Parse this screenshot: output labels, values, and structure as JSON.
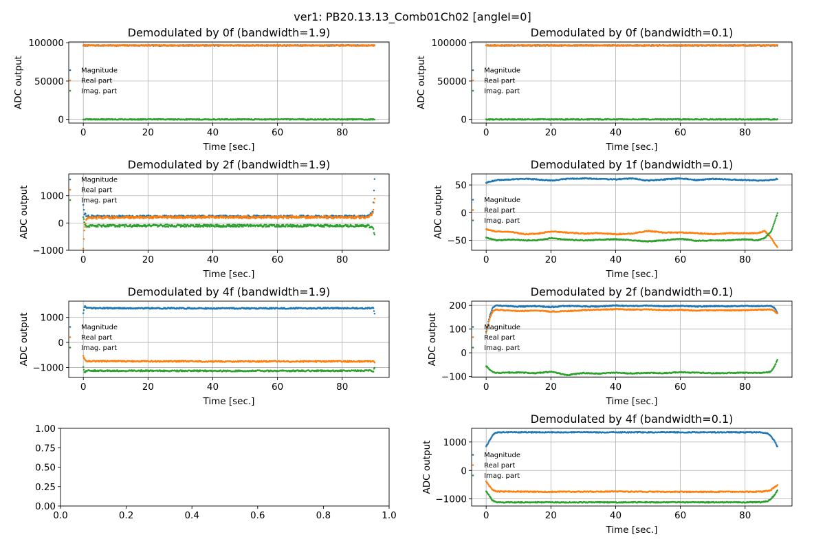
{
  "figure": {
    "suptitle": "ver1: PB20.13.13_Comb01Ch02 [angleI=0]"
  },
  "colors": {
    "magnitude": "#1f77b4",
    "real": "#ff7f0e",
    "imag": "#2ca02c",
    "grid": "#b0b0b0"
  },
  "chart_data": [
    {
      "id": "p1",
      "type": "scatter",
      "title": "Demodulated by 0f (bandwidth=1.9)",
      "xlabel": "Time [sec.]",
      "ylabel": "ADC output",
      "xlim": [
        -4.5,
        94.5
      ],
      "ylim": [
        -4800,
        101000
      ],
      "xticks": [
        0,
        20,
        40,
        60,
        80
      ],
      "xtick_labels": [
        "0",
        "20",
        "40",
        "60",
        "80"
      ],
      "yticks": [
        0,
        50000,
        100000
      ],
      "ytick_labels": [
        "0",
        "50000",
        "100000"
      ],
      "grid": true,
      "legend_loc": "center-left",
      "legend": [
        "Magnitude",
        "Real part",
        "Imag. part"
      ],
      "series": [
        {
          "name": "Magnitude",
          "color": "#1f77b4",
          "x": [
            0,
            45,
            90
          ],
          "y": [
            96500,
            96500,
            96500
          ]
        },
        {
          "name": "Real part",
          "color": "#ff7f0e",
          "x": [
            0,
            45,
            90
          ],
          "y": [
            96500,
            96500,
            96500
          ]
        },
        {
          "name": "Imag. part",
          "color": "#2ca02c",
          "x": [
            0,
            45,
            90
          ],
          "y": [
            0,
            0,
            0
          ]
        }
      ]
    },
    {
      "id": "p2",
      "type": "scatter",
      "title": "Demodulated by 0f (bandwidth=0.1)",
      "xlabel": "Time [sec.]",
      "ylabel": "ADC output",
      "xlim": [
        -4.5,
        94.5
      ],
      "ylim": [
        -4800,
        101000
      ],
      "xticks": [
        0,
        20,
        40,
        60,
        80
      ],
      "xtick_labels": [
        "0",
        "20",
        "40",
        "60",
        "80"
      ],
      "yticks": [
        0,
        50000,
        100000
      ],
      "ytick_labels": [
        "0",
        "50000",
        "100000"
      ],
      "grid": true,
      "legend_loc": "center-left",
      "legend": [
        "Magnitude",
        "Real part",
        "Imag. part"
      ],
      "series": [
        {
          "name": "Magnitude",
          "color": "#1f77b4",
          "x": [
            0,
            45,
            90
          ],
          "y": [
            96500,
            96500,
            96500
          ]
        },
        {
          "name": "Real part",
          "color": "#ff7f0e",
          "x": [
            0,
            45,
            90
          ],
          "y": [
            96500,
            96500,
            96500
          ]
        },
        {
          "name": "Imag. part",
          "color": "#2ca02c",
          "x": [
            0,
            45,
            90
          ],
          "y": [
            0,
            0,
            0
          ]
        }
      ]
    },
    {
      "id": "p3",
      "type": "scatter",
      "title": "Demodulated by 2f (bandwidth=1.9)",
      "xlabel": "Time [sec.]",
      "ylabel": "ADC output",
      "xlim": [
        -4.5,
        94.5
      ],
      "ylim": [
        -1000,
        1800
      ],
      "xticks": [
        0,
        20,
        40,
        60,
        80
      ],
      "xtick_labels": [
        "0",
        "20",
        "40",
        "60",
        "80"
      ],
      "yticks": [
        -1000,
        0,
        1000
      ],
      "ytick_labels": [
        "−1000",
        "0",
        "1000"
      ],
      "grid": true,
      "legend_loc": "upper-left",
      "legend": [
        "Magnitude",
        "Real part",
        "Imag. part"
      ],
      "series": [
        {
          "name": "Magnitude",
          "color": "#1f77b4",
          "x": [
            0,
            0.3,
            1,
            5,
            20,
            45,
            70,
            88,
            89.5,
            90
          ],
          "y": [
            700,
            350,
            250,
            240,
            240,
            240,
            240,
            240,
            400,
            1600
          ],
          "noise": 40
        },
        {
          "name": "Real part",
          "color": "#ff7f0e",
          "x": [
            0,
            0.3,
            1,
            5,
            20,
            45,
            70,
            88,
            89.5,
            90
          ],
          "y": [
            -900,
            -300,
            180,
            200,
            210,
            210,
            210,
            210,
            350,
            900
          ],
          "noise": 45
        },
        {
          "name": "Imag. part",
          "color": "#2ca02c",
          "x": [
            0,
            0.3,
            1,
            5,
            20,
            45,
            70,
            88,
            89.5,
            90
          ],
          "y": [
            250,
            0,
            -100,
            -100,
            -100,
            -100,
            -100,
            -100,
            -200,
            -400
          ],
          "noise": 45
        }
      ]
    },
    {
      "id": "p4",
      "type": "scatter",
      "title": "Demodulated by 1f (bandwidth=0.1)",
      "xlabel": "Time [sec.]",
      "ylabel": "ADC output",
      "xlim": [
        -4.5,
        94.5
      ],
      "ylim": [
        -68,
        70
      ],
      "xticks": [
        0,
        20,
        40,
        60,
        80
      ],
      "xtick_labels": [
        "0",
        "20",
        "40",
        "60",
        "80"
      ],
      "yticks": [
        -50,
        0,
        50
      ],
      "ytick_labels": [
        "−50",
        "0",
        "50"
      ],
      "grid": true,
      "legend_loc": "center-left",
      "legend": [
        "Magnitude",
        "Real part",
        "Imag. part"
      ],
      "series": [
        {
          "name": "Magnitude",
          "color": "#1f77b4",
          "x": [
            0,
            3,
            8,
            12,
            16,
            20,
            25,
            30,
            35,
            40,
            45,
            50,
            55,
            60,
            65,
            70,
            75,
            80,
            85,
            88,
            90
          ],
          "y": [
            54,
            59,
            60,
            61,
            60,
            58,
            61,
            62,
            61,
            60,
            62,
            58,
            60,
            62,
            59,
            61,
            60,
            59,
            58,
            59,
            61
          ]
        },
        {
          "name": "Real part",
          "color": "#ff7f0e",
          "x": [
            0,
            3,
            8,
            12,
            16,
            20,
            25,
            30,
            35,
            40,
            45,
            50,
            55,
            60,
            65,
            70,
            75,
            80,
            84,
            86,
            88,
            90
          ],
          "y": [
            -30,
            -34,
            -35,
            -39,
            -38,
            -34,
            -36,
            -38,
            -37,
            -39,
            -38,
            -33,
            -36,
            -36,
            -37,
            -39,
            -37,
            -37,
            -37,
            -33,
            -45,
            -63
          ]
        },
        {
          "name": "Imag. part",
          "color": "#2ca02c",
          "x": [
            0,
            3,
            8,
            12,
            16,
            20,
            25,
            30,
            35,
            40,
            45,
            50,
            55,
            60,
            65,
            70,
            75,
            80,
            84,
            86,
            88,
            90
          ],
          "y": [
            -45,
            -50,
            -49,
            -50,
            -50,
            -46,
            -49,
            -50,
            -49,
            -48,
            -50,
            -52,
            -50,
            -47,
            -51,
            -50,
            -50,
            -48,
            -50,
            -46,
            -35,
            -1
          ]
        }
      ]
    },
    {
      "id": "p5",
      "type": "scatter",
      "title": "Demodulated by 4f (bandwidth=1.9)",
      "xlabel": "Time [sec.]",
      "ylabel": "ADC output",
      "xlim": [
        -4.5,
        94.5
      ],
      "ylim": [
        -1400,
        1650
      ],
      "xticks": [
        0,
        20,
        40,
        60,
        80
      ],
      "xtick_labels": [
        "0",
        "20",
        "40",
        "60",
        "80"
      ],
      "yticks": [
        -1000,
        0,
        1000
      ],
      "ytick_labels": [
        "−1000",
        "0",
        "1000"
      ],
      "grid": true,
      "legend_loc": "center-left",
      "legend": [
        "Magnitude",
        "Real part",
        "Imag. part"
      ],
      "series": [
        {
          "name": "Magnitude",
          "color": "#1f77b4",
          "x": [
            0,
            0.4,
            1,
            45,
            89,
            89.6,
            90
          ],
          "y": [
            1150,
            1450,
            1370,
            1360,
            1370,
            1400,
            1150
          ],
          "noise": 25
        },
        {
          "name": "Real part",
          "color": "#ff7f0e",
          "x": [
            0,
            0.4,
            1,
            45,
            89,
            89.6,
            90
          ],
          "y": [
            -550,
            -680,
            -750,
            -760,
            -760,
            -740,
            -800
          ],
          "noise": 25
        },
        {
          "name": "Imag. part",
          "color": "#2ca02c",
          "x": [
            0,
            0.4,
            1,
            45,
            89,
            89.6,
            90
          ],
          "y": [
            -1000,
            -1200,
            -1130,
            -1140,
            -1130,
            -1180,
            -1000
          ],
          "noise": 25
        }
      ]
    },
    {
      "id": "p6",
      "type": "scatter",
      "title": "Demodulated by 2f (bandwidth=0.1)",
      "xlabel": "Time [sec.]",
      "ylabel": "ADC output",
      "xlim": [
        -4.5,
        94.5
      ],
      "ylim": [
        -104,
        218
      ],
      "xticks": [
        0,
        20,
        40,
        60,
        80
      ],
      "xtick_labels": [
        "0",
        "20",
        "40",
        "60",
        "80"
      ],
      "yticks": [
        -100,
        0,
        100,
        200
      ],
      "ytick_labels": [
        "−100",
        "0",
        "100",
        "200"
      ],
      "grid": true,
      "legend_loc": "center-left",
      "legend": [
        "Magnitude",
        "Real part",
        "Imag. part"
      ],
      "series": [
        {
          "name": "Magnitude",
          "color": "#1f77b4",
          "x": [
            0,
            1,
            2,
            3,
            5,
            10,
            15,
            20,
            25,
            30,
            35,
            40,
            45,
            50,
            55,
            60,
            65,
            70,
            75,
            80,
            85,
            88,
            89,
            90
          ],
          "y": [
            90,
            150,
            190,
            200,
            198,
            195,
            197,
            193,
            198,
            196,
            195,
            200,
            197,
            199,
            196,
            198,
            195,
            197,
            196,
            198,
            197,
            198,
            190,
            170
          ]
        },
        {
          "name": "Real part",
          "color": "#ff7f0e",
          "x": [
            0,
            1,
            2,
            3,
            5,
            10,
            15,
            20,
            25,
            30,
            35,
            40,
            45,
            50,
            55,
            60,
            65,
            70,
            75,
            80,
            85,
            88,
            89,
            90
          ],
          "y": [
            85,
            140,
            175,
            182,
            180,
            176,
            178,
            174,
            176,
            180,
            182,
            184,
            182,
            183,
            180,
            181,
            178,
            180,
            179,
            180,
            182,
            183,
            176,
            165
          ]
        },
        {
          "name": "Imag. part",
          "color": "#2ca02c",
          "x": [
            0,
            1,
            2,
            3,
            5,
            10,
            15,
            20,
            25,
            30,
            35,
            40,
            45,
            50,
            55,
            60,
            65,
            70,
            75,
            80,
            85,
            88,
            89,
            90
          ],
          "y": [
            -55,
            -70,
            -80,
            -85,
            -84,
            -83,
            -86,
            -80,
            -94,
            -85,
            -88,
            -84,
            -87,
            -85,
            -86,
            -82,
            -84,
            -86,
            -85,
            -84,
            -85,
            -80,
            -60,
            -30
          ]
        }
      ]
    },
    {
      "id": "p7",
      "type": "scatter",
      "title": "",
      "xlabel": "",
      "ylabel": "",
      "xlim": [
        0,
        1
      ],
      "ylim": [
        0,
        1
      ],
      "xticks": [
        0,
        0.2,
        0.4,
        0.6,
        0.8,
        1.0
      ],
      "xtick_labels": [
        "0.0",
        "0.2",
        "0.4",
        "0.6",
        "0.8",
        "1.0"
      ],
      "yticks": [
        0,
        0.25,
        0.5,
        0.75,
        1.0
      ],
      "ytick_labels": [
        "0.00",
        "0.25",
        "0.50",
        "0.75",
        "1.00"
      ],
      "grid": false,
      "legend": [],
      "series": []
    },
    {
      "id": "p8",
      "type": "scatter",
      "title": "Demodulated by 4f (bandwidth=0.1)",
      "xlabel": "Time [sec.]",
      "ylabel": "ADC output",
      "xlim": [
        -4.5,
        94.5
      ],
      "ylim": [
        -1250,
        1480
      ],
      "xticks": [
        0,
        20,
        40,
        60,
        80
      ],
      "xtick_labels": [
        "0",
        "20",
        "40",
        "60",
        "80"
      ],
      "yticks": [
        -1000,
        0,
        1000
      ],
      "ytick_labels": [
        "−1000",
        "0",
        "1000"
      ],
      "grid": true,
      "legend_loc": "center-left",
      "legend": [
        "Magnitude",
        "Real part",
        "Imag. part"
      ],
      "series": [
        {
          "name": "Magnitude",
          "color": "#1f77b4",
          "x": [
            0,
            1,
            2,
            3,
            4,
            10,
            20,
            30,
            40,
            50,
            60,
            70,
            80,
            85,
            87,
            88,
            89,
            90
          ],
          "y": [
            830,
            1050,
            1250,
            1320,
            1340,
            1340,
            1340,
            1340,
            1340,
            1340,
            1340,
            1340,
            1340,
            1340,
            1300,
            1200,
            1050,
            830
          ]
        },
        {
          "name": "Real part",
          "color": "#ff7f0e",
          "x": [
            0,
            1,
            2,
            3,
            4,
            10,
            20,
            30,
            40,
            50,
            60,
            70,
            80,
            85,
            87,
            88,
            89,
            90
          ],
          "y": [
            -400,
            -550,
            -680,
            -730,
            -740,
            -745,
            -750,
            -745,
            -740,
            -748,
            -752,
            -750,
            -748,
            -745,
            -720,
            -680,
            -600,
            -520
          ]
        },
        {
          "name": "Imag. part",
          "color": "#2ca02c",
          "x": [
            0,
            1,
            2,
            3,
            4,
            10,
            20,
            30,
            40,
            50,
            60,
            70,
            80,
            85,
            87,
            88,
            89,
            90
          ],
          "y": [
            -720,
            -900,
            -1060,
            -1110,
            -1120,
            -1120,
            -1120,
            -1120,
            -1120,
            -1120,
            -1120,
            -1120,
            -1120,
            -1115,
            -1080,
            -1000,
            -880,
            -700
          ]
        }
      ]
    }
  ]
}
